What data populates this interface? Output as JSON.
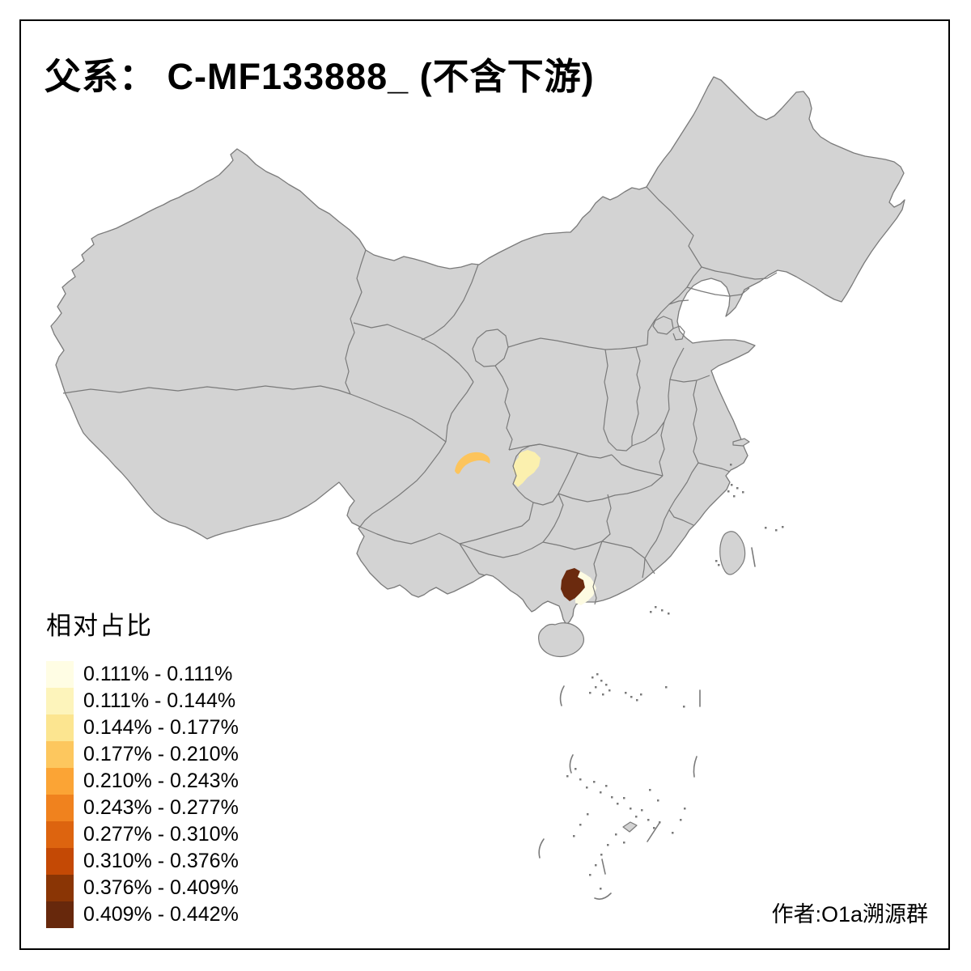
{
  "title": "父系： C-MF133888_ (不含下游)",
  "credit": "作者:O1a溯源群",
  "legend": {
    "title": "相对占比",
    "entries": [
      {
        "label": "0.111% - 0.111%",
        "color": "#fffde4"
      },
      {
        "label": "0.111% - 0.144%",
        "color": "#fdf4bb"
      },
      {
        "label": "0.144% - 0.177%",
        "color": "#fce590"
      },
      {
        "label": "0.177% - 0.210%",
        "color": "#fdc75e"
      },
      {
        "label": "0.210% - 0.243%",
        "color": "#fba435"
      },
      {
        "label": "0.243% - 0.277%",
        "color": "#f0821e"
      },
      {
        "label": "0.277% - 0.310%",
        "color": "#dd640f"
      },
      {
        "label": "0.310% - 0.376%",
        "color": "#c44905"
      },
      {
        "label": "0.376% - 0.409%",
        "color": "#8a3505"
      },
      {
        "label": "0.409% - 0.442%",
        "color": "#67280c"
      }
    ]
  },
  "map": {
    "base_fill": "#d3d3d3",
    "border_color": "#7a7a7a",
    "background": "#ffffff",
    "frame_color": "#000000",
    "regions": [
      {
        "name": "sichuan-west-prefecture",
        "class_label": "0.177% - 0.210%",
        "color": "#fcc45c"
      },
      {
        "name": "chongqing-west-prefecture",
        "class_label": "0.111% - 0.144%",
        "color": "#fbf0ae"
      },
      {
        "name": "guangxi-southwest-prefecture",
        "class_label": "0.409% - 0.442%",
        "color": "#6b2a0e"
      },
      {
        "name": "guangxi-south-prefecture",
        "class_label": "0.111% - 0.111%",
        "color": "#fdfbe2"
      }
    ]
  },
  "chart_data": {
    "type": "choropleth",
    "title": "父系： C-MF133888_ (不含下游)",
    "legend_title": "相对占比",
    "legend_position": "bottom-left",
    "classes": [
      "0.111% - 0.111%",
      "0.111% - 0.144%",
      "0.144% - 0.177%",
      "0.177% - 0.210%",
      "0.210% - 0.243%",
      "0.243% - 0.277%",
      "0.277% - 0.310%",
      "0.310% - 0.376%",
      "0.376% - 0.409%",
      "0.409% - 0.442%"
    ],
    "regions_with_data": [
      {
        "location": "western Sichuan prefecture (crescent shape)",
        "class": "0.177% - 0.210%"
      },
      {
        "location": "western Chongqing",
        "class": "0.111% - 0.144%"
      },
      {
        "location": "southwestern Guangxi prefecture",
        "class": "0.409% - 0.442%"
      },
      {
        "location": "south-central Guangxi prefecture",
        "class": "0.111% - 0.111%"
      }
    ],
    "all_other_provinces": "no data (uniform gray fill)"
  }
}
